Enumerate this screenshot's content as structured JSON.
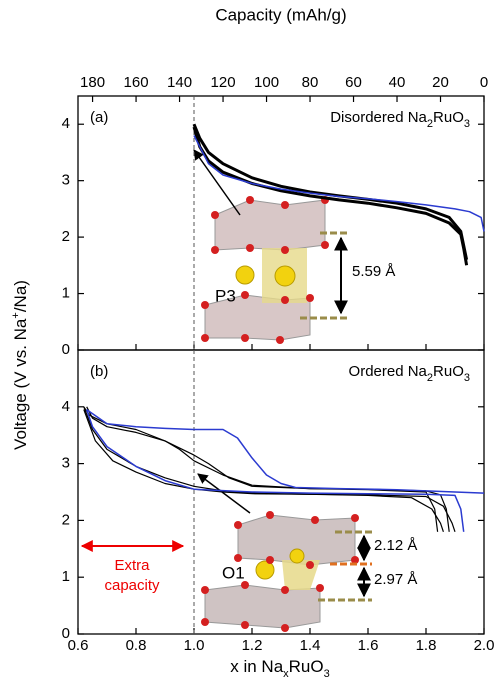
{
  "chart_data": [
    {
      "type": "line",
      "panel_label": "(a)",
      "title_parts": [
        "Disordered Na",
        "2",
        "RuO",
        "3"
      ],
      "ylabel_parts": [
        "Voltage (V vs. Na",
        "+",
        "/Na)"
      ],
      "x2label": "Capacity (mAh/g)",
      "x2lim": [
        186.7,
        0
      ],
      "x2ticks": [
        180,
        160,
        140,
        120,
        100,
        80,
        60,
        40,
        20,
        0
      ],
      "xlim": [
        0.6,
        2.0
      ],
      "xticks": [
        0.6,
        0.8,
        1.0,
        1.2,
        1.4,
        1.6,
        1.8,
        2.0
      ],
      "ylim": [
        0,
        4.5
      ],
      "yticks": [
        0,
        1,
        2,
        3,
        4
      ],
      "vline": 1.0,
      "annotations": {
        "structure": "P3",
        "spacing": "5.59 Å"
      },
      "series": [
        {
          "color": "#000000",
          "width": 3,
          "x": [
            1.0,
            1.02,
            1.05,
            1.1,
            1.2,
            1.3,
            1.4,
            1.5,
            1.6,
            1.7,
            1.8,
            1.88,
            1.92,
            1.93,
            1.94
          ],
          "values": [
            3.95,
            3.6,
            3.35,
            3.15,
            2.95,
            2.82,
            2.73,
            2.66,
            2.6,
            2.52,
            2.42,
            2.25,
            2.05,
            1.8,
            1.5
          ]
        },
        {
          "color": "#000000",
          "width": 3,
          "x": [
            1.94,
            1.92,
            1.88,
            1.8,
            1.7,
            1.6,
            1.5,
            1.4,
            1.3,
            1.2,
            1.1,
            1.05,
            1.02,
            1.0
          ],
          "values": [
            1.6,
            2.1,
            2.35,
            2.5,
            2.6,
            2.67,
            2.73,
            2.8,
            2.9,
            3.05,
            3.3,
            3.5,
            3.75,
            4.0
          ]
        },
        {
          "color": "#2b3bd0",
          "width": 1.5,
          "x": [
            1.0,
            1.05,
            1.1,
            1.2,
            1.3,
            1.4,
            1.5,
            1.6,
            1.7,
            1.8,
            1.9,
            1.95,
            1.99,
            2.0
          ],
          "values": [
            3.8,
            3.3,
            3.1,
            2.95,
            2.85,
            2.78,
            2.72,
            2.68,
            2.63,
            2.57,
            2.5,
            2.45,
            2.35,
            2.1
          ]
        }
      ]
    },
    {
      "type": "line",
      "panel_label": "(b)",
      "title_parts": [
        "Ordered Na",
        "2",
        "RuO",
        "3"
      ],
      "xlabel_parts": [
        "x in Na",
        "x",
        "RuO",
        "3"
      ],
      "xlim": [
        0.6,
        2.0
      ],
      "xticks": [
        0.6,
        0.8,
        {
          "value": 1.0,
          "label": "1.0"
        },
        1.2,
        1.4,
        1.6,
        1.8,
        {
          "value": 2.0,
          "label": "2.0"
        }
      ],
      "ylim": [
        0,
        5
      ],
      "yticks": [
        0,
        1,
        2,
        3,
        4
      ],
      "vline": 1.0,
      "annotations": {
        "structure": "O1",
        "spacing_top": "2.12 Å",
        "spacing_bottom": "2.97 Å",
        "extra_capacity": [
          "Extra",
          "capacity"
        ]
      },
      "series": [
        {
          "color": "#000000",
          "width": 1.2,
          "x": [
            0.62,
            0.65,
            0.7,
            0.8,
            0.9,
            1.0,
            1.1,
            1.2,
            1.4,
            1.6,
            1.75,
            1.82,
            1.85,
            1.86
          ],
          "values": [
            4.0,
            3.6,
            3.25,
            2.95,
            2.75,
            2.6,
            2.52,
            2.48,
            2.46,
            2.44,
            2.4,
            2.2,
            1.95,
            1.8
          ]
        },
        {
          "color": "#000000",
          "width": 1.2,
          "x": [
            0.62,
            0.66,
            0.72,
            0.8,
            0.9,
            1.0,
            1.1,
            1.2,
            1.4,
            1.6,
            1.8,
            1.86,
            1.89,
            1.9
          ],
          "values": [
            3.95,
            3.4,
            3.05,
            2.85,
            2.65,
            2.55,
            2.5,
            2.47,
            2.46,
            2.45,
            2.42,
            2.25,
            1.95,
            1.8
          ]
        },
        {
          "color": "#000000",
          "width": 1.2,
          "x": [
            1.88,
            1.87,
            1.85,
            1.8,
            1.6,
            1.4,
            1.2,
            1.12,
            1.05,
            1.0,
            0.9,
            0.8,
            0.7,
            0.65,
            0.63
          ],
          "values": [
            1.8,
            2.2,
            2.45,
            2.52,
            2.55,
            2.56,
            2.6,
            2.75,
            3.0,
            3.15,
            3.4,
            3.55,
            3.65,
            3.8,
            4.0
          ]
        },
        {
          "color": "#000000",
          "width": 1.2,
          "x": [
            1.84,
            1.83,
            1.8,
            1.6,
            1.4,
            1.2,
            1.1,
            1.0,
            0.95,
            0.9,
            0.8,
            0.7,
            0.64,
            0.62
          ],
          "values": [
            1.8,
            2.2,
            2.5,
            2.54,
            2.56,
            2.62,
            2.8,
            3.05,
            3.25,
            3.4,
            3.6,
            3.7,
            3.85,
            4.0
          ]
        },
        {
          "color": "#2b3bd0",
          "width": 1.5,
          "x": [
            0.63,
            0.7,
            0.8,
            0.9,
            1.0,
            1.1,
            1.15,
            1.2,
            1.25,
            1.3,
            1.35,
            1.5,
            1.7,
            1.9,
            2.0
          ],
          "values": [
            3.95,
            3.7,
            3.65,
            3.62,
            3.6,
            3.6,
            3.45,
            3.1,
            2.8,
            2.65,
            2.58,
            2.56,
            2.54,
            2.5,
            2.48
          ]
        },
        {
          "color": "#2b3bd0",
          "width": 1.5,
          "x": [
            1.93,
            1.92,
            1.9,
            1.8,
            1.6,
            1.4,
            1.2,
            1.0,
            0.9,
            0.8,
            0.7,
            0.65,
            0.63
          ],
          "values": [
            1.8,
            2.2,
            2.44,
            2.46,
            2.47,
            2.48,
            2.5,
            2.55,
            2.7,
            2.95,
            3.3,
            3.65,
            3.95
          ]
        }
      ]
    }
  ]
}
